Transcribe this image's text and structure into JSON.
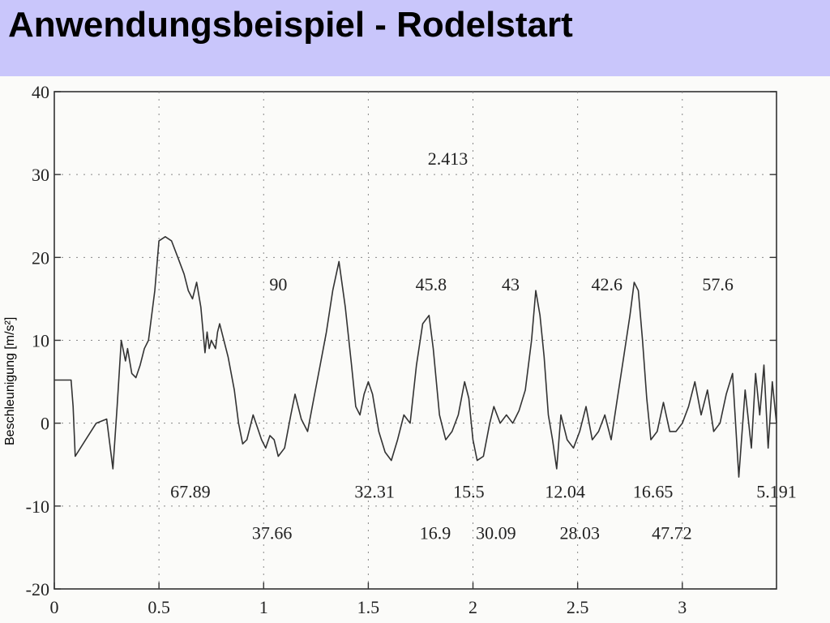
{
  "slide": {
    "title": "Anwendungsbeispiel - Rodelstart"
  },
  "colors": {
    "title_bar": "#c9c6fb",
    "background": "#ffffff",
    "plot_line": "#333333"
  },
  "chart_data": {
    "type": "line",
    "ylabel": "Beschleunigung [m/s²]",
    "xlabel": "",
    "xlim": [
      0,
      3.45
    ],
    "ylim": [
      -20,
      40
    ],
    "xticks": [
      0,
      0.5,
      1,
      1.5,
      2,
      2.5,
      3
    ],
    "xtick_labels": [
      "0",
      "0.5",
      "1",
      "1.5",
      "2",
      "2.5",
      "3"
    ],
    "yticks": [
      -20,
      -10,
      0,
      10,
      20,
      30,
      40
    ],
    "ytick_labels": [
      "-20",
      "-10",
      "0",
      "10",
      "20",
      "30",
      "40"
    ],
    "grid": "dotted",
    "series": [
      {
        "x": [
          0,
          0.08,
          0.09,
          0.1,
          0.15,
          0.2,
          0.25,
          0.28,
          0.3,
          0.32,
          0.34,
          0.35,
          0.37,
          0.39,
          0.41,
          0.42,
          0.43,
          0.45,
          0.48,
          0.5,
          0.53,
          0.56,
          0.59,
          0.62,
          0.64,
          0.66,
          0.68,
          0.7,
          0.72,
          0.73,
          0.74,
          0.75,
          0.76,
          0.77,
          0.78,
          0.79,
          0.8,
          0.83,
          0.86,
          0.88,
          0.9,
          0.92,
          0.95,
          0.97,
          0.99,
          1.01,
          1.03,
          1.05,
          1.07,
          1.1,
          1.13,
          1.15,
          1.18,
          1.21,
          1.24,
          1.27,
          1.3,
          1.33,
          1.36,
          1.39,
          1.42,
          1.44,
          1.46,
          1.48,
          1.5,
          1.52,
          1.55,
          1.58,
          1.61,
          1.64,
          1.67,
          1.7,
          1.73,
          1.76,
          1.79,
          1.81,
          1.84,
          1.87,
          1.9,
          1.93,
          1.96,
          1.98,
          2.0,
          2.02,
          2.05,
          2.08,
          2.1,
          2.13,
          2.16,
          2.19,
          2.22,
          2.25,
          2.28,
          2.3,
          2.32,
          2.34,
          2.36,
          2.38,
          2.4,
          2.42,
          2.45,
          2.48,
          2.51,
          2.54,
          2.57,
          2.6,
          2.63,
          2.66,
          2.69,
          2.72,
          2.75,
          2.77,
          2.79,
          2.81,
          2.83,
          2.85,
          2.88,
          2.91,
          2.94,
          2.97,
          3.0,
          3.03,
          3.06,
          3.09,
          3.12,
          3.15,
          3.18,
          3.21,
          3.24,
          3.27,
          3.3,
          3.33,
          3.35,
          3.37,
          3.39,
          3.41,
          3.43,
          3.45
        ],
        "values": [
          5.2,
          5.2,
          2.0,
          -4.0,
          -2.0,
          0.0,
          0.5,
          -5.5,
          2.0,
          10.0,
          7.5,
          9.0,
          6.0,
          5.5,
          7.0,
          8.0,
          9.0,
          10.0,
          16.0,
          22.0,
          22.5,
          22.0,
          20.0,
          18.0,
          16.0,
          15.0,
          17.0,
          14.0,
          8.5,
          11.0,
          9.0,
          10.0,
          9.5,
          9.0,
          11.0,
          12.0,
          11.0,
          8.0,
          4.0,
          0.0,
          -2.5,
          -2.0,
          1.0,
          -0.5,
          -2.0,
          -3.0,
          -1.5,
          -2.0,
          -4.0,
          -3.0,
          1.0,
          3.5,
          0.5,
          -1.0,
          3.0,
          7.0,
          11.0,
          16.0,
          19.5,
          14.0,
          7.0,
          2.0,
          1.0,
          3.5,
          5.0,
          3.5,
          -1.0,
          -3.5,
          -4.5,
          -2.0,
          1.0,
          0.0,
          7.0,
          12.0,
          13.0,
          9.0,
          1.0,
          -2.0,
          -1.0,
          1.0,
          5.0,
          3.0,
          -2.0,
          -4.5,
          -4.0,
          0.0,
          2.0,
          0.0,
          1.0,
          0.0,
          1.5,
          4.0,
          10.0,
          16.0,
          13.0,
          8.0,
          1.0,
          -2.0,
          -5.5,
          1.0,
          -2.0,
          -3.0,
          -1.0,
          2.0,
          -2.0,
          -1.0,
          1.0,
          -2.0,
          3.0,
          8.0,
          13.0,
          17.0,
          16.0,
          10.0,
          3.0,
          -2.0,
          -1.0,
          2.5,
          -1.0,
          -1.0,
          0.0,
          2.0,
          5.0,
          1.0,
          4.0,
          -1.0,
          0.0,
          3.5,
          6.0,
          -6.5,
          4.0,
          -3.0,
          6.0,
          1.0,
          7.0,
          -3.0,
          5.0,
          0.0
        ]
      }
    ],
    "annotations": [
      {
        "text": "2.413",
        "x": 1.88,
        "y": 31.2
      },
      {
        "text": "90",
        "x": 1.07,
        "y": 16.0
      },
      {
        "text": "45.8",
        "x": 1.8,
        "y": 16.0
      },
      {
        "text": "43",
        "x": 2.18,
        "y": 16.0
      },
      {
        "text": "42.6",
        "x": 2.64,
        "y": 16.0
      },
      {
        "text": "57.6",
        "x": 3.17,
        "y": 16.0
      },
      {
        "text": "67.89",
        "x": 0.65,
        "y": -9.0
      },
      {
        "text": "32.31",
        "x": 1.53,
        "y": -9.0
      },
      {
        "text": "15.5",
        "x": 1.98,
        "y": -9.0
      },
      {
        "text": "12.04",
        "x": 2.44,
        "y": -9.0
      },
      {
        "text": "16.65",
        "x": 2.86,
        "y": -9.0
      },
      {
        "text": "5.191",
        "x": 3.45,
        "y": -9.0
      },
      {
        "text": "37.66",
        "x": 1.04,
        "y": -14.0
      },
      {
        "text": "16.9",
        "x": 1.82,
        "y": -14.0
      },
      {
        "text": "30.09",
        "x": 2.11,
        "y": -14.0
      },
      {
        "text": "28.03",
        "x": 2.51,
        "y": -14.0
      },
      {
        "text": "47.72",
        "x": 2.95,
        "y": -14.0
      }
    ]
  }
}
